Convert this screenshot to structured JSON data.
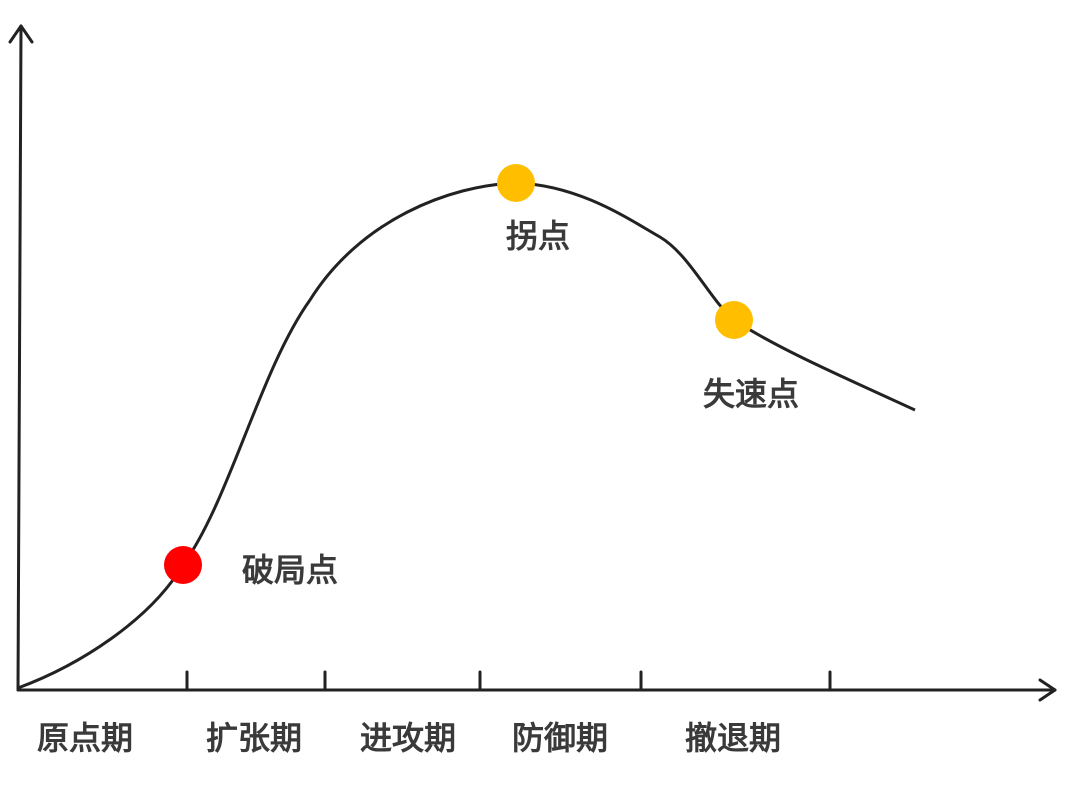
{
  "points": [
    {
      "label": "破局点"
    },
    {
      "label": "拐点"
    },
    {
      "label": "失速点"
    }
  ],
  "phases": [
    "原点期",
    "扩张期",
    "进攻期",
    "防御期",
    "撤退期"
  ]
}
